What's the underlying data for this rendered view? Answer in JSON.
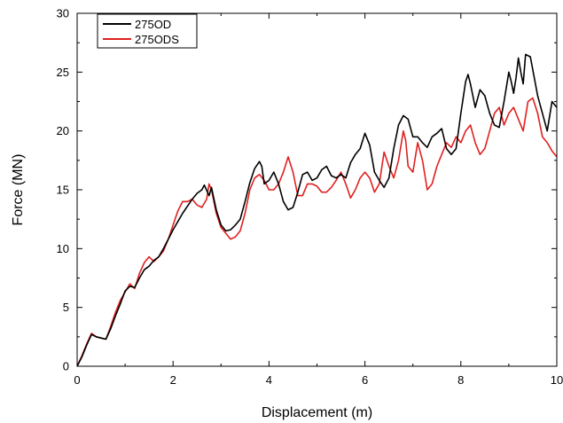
{
  "chart_data": {
    "type": "line",
    "xlabel": "Displacement (m)",
    "ylabel": "Force (MN)",
    "xlim": [
      0,
      10
    ],
    "ylim": [
      0,
      30
    ],
    "xticks": [
      "0",
      "2",
      "4",
      "6",
      "8",
      "10"
    ],
    "yticks": [
      "0",
      "5",
      "10",
      "15",
      "20",
      "25",
      "30"
    ],
    "grid": false,
    "legend_position": "top-left",
    "series": [
      {
        "name": "275OD",
        "color": "#000000",
        "points": [
          [
            0,
            0
          ],
          [
            0.1,
            0.8
          ],
          [
            0.2,
            1.8
          ],
          [
            0.3,
            2.7
          ],
          [
            0.4,
            2.5
          ],
          [
            0.5,
            2.4
          ],
          [
            0.6,
            2.3
          ],
          [
            0.7,
            3.2
          ],
          [
            0.8,
            4.3
          ],
          [
            0.9,
            5.3
          ],
          [
            1.0,
            6.4
          ],
          [
            1.1,
            6.8
          ],
          [
            1.2,
            6.7
          ],
          [
            1.3,
            7.5
          ],
          [
            1.4,
            8.2
          ],
          [
            1.5,
            8.5
          ],
          [
            1.6,
            9.0
          ],
          [
            1.7,
            9.3
          ],
          [
            1.8,
            10.0
          ],
          [
            1.9,
            10.8
          ],
          [
            2.0,
            11.6
          ],
          [
            2.1,
            12.3
          ],
          [
            2.2,
            13.0
          ],
          [
            2.3,
            13.6
          ],
          [
            2.4,
            14.2
          ],
          [
            2.5,
            14.7
          ],
          [
            2.6,
            15.0
          ],
          [
            2.65,
            15.4
          ],
          [
            2.75,
            14.5
          ],
          [
            2.8,
            15.2
          ],
          [
            2.9,
            13.3
          ],
          [
            3.0,
            12.0
          ],
          [
            3.1,
            11.5
          ],
          [
            3.2,
            11.6
          ],
          [
            3.3,
            12.0
          ],
          [
            3.4,
            12.5
          ],
          [
            3.5,
            14.0
          ],
          [
            3.6,
            15.6
          ],
          [
            3.7,
            16.8
          ],
          [
            3.8,
            17.4
          ],
          [
            3.85,
            17.0
          ],
          [
            3.9,
            15.5
          ],
          [
            4.0,
            15.8
          ],
          [
            4.1,
            16.5
          ],
          [
            4.2,
            15.5
          ],
          [
            4.3,
            14.0
          ],
          [
            4.4,
            13.3
          ],
          [
            4.5,
            13.5
          ],
          [
            4.6,
            14.8
          ],
          [
            4.7,
            16.3
          ],
          [
            4.8,
            16.5
          ],
          [
            4.9,
            15.8
          ],
          [
            5.0,
            16.0
          ],
          [
            5.1,
            16.7
          ],
          [
            5.2,
            17.0
          ],
          [
            5.3,
            16.2
          ],
          [
            5.4,
            16.0
          ],
          [
            5.5,
            16.3
          ],
          [
            5.6,
            16.0
          ],
          [
            5.7,
            17.3
          ],
          [
            5.8,
            18.0
          ],
          [
            5.9,
            18.5
          ],
          [
            6.0,
            19.8
          ],
          [
            6.1,
            18.8
          ],
          [
            6.2,
            16.5
          ],
          [
            6.3,
            15.8
          ],
          [
            6.4,
            15.2
          ],
          [
            6.5,
            16.0
          ],
          [
            6.6,
            18.5
          ],
          [
            6.7,
            20.5
          ],
          [
            6.8,
            21.3
          ],
          [
            6.9,
            21.0
          ],
          [
            7.0,
            19.5
          ],
          [
            7.1,
            19.5
          ],
          [
            7.2,
            19.0
          ],
          [
            7.3,
            18.6
          ],
          [
            7.4,
            19.5
          ],
          [
            7.5,
            19.8
          ],
          [
            7.6,
            20.2
          ],
          [
            7.7,
            18.5
          ],
          [
            7.8,
            18.0
          ],
          [
            7.9,
            18.5
          ],
          [
            8.0,
            21.5
          ],
          [
            8.1,
            24.2
          ],
          [
            8.15,
            24.8
          ],
          [
            8.2,
            24.0
          ],
          [
            8.3,
            22.0
          ],
          [
            8.4,
            23.5
          ],
          [
            8.5,
            23.0
          ],
          [
            8.6,
            21.5
          ],
          [
            8.7,
            20.5
          ],
          [
            8.8,
            20.3
          ],
          [
            8.9,
            22.5
          ],
          [
            9.0,
            25.0
          ],
          [
            9.05,
            24.2
          ],
          [
            9.1,
            23.2
          ],
          [
            9.15,
            24.5
          ],
          [
            9.2,
            26.2
          ],
          [
            9.25,
            25.0
          ],
          [
            9.3,
            24.0
          ],
          [
            9.35,
            26.5
          ],
          [
            9.45,
            26.3
          ],
          [
            9.6,
            23.0
          ],
          [
            9.7,
            21.5
          ],
          [
            9.8,
            20.0
          ],
          [
            9.9,
            22.5
          ],
          [
            10.0,
            22.0
          ]
        ]
      },
      {
        "name": "275ODS",
        "color": "#e0201f",
        "points": [
          [
            0,
            0
          ],
          [
            0.1,
            0.9
          ],
          [
            0.2,
            1.9
          ],
          [
            0.3,
            2.8
          ],
          [
            0.4,
            2.5
          ],
          [
            0.5,
            2.4
          ],
          [
            0.6,
            2.3
          ],
          [
            0.7,
            3.4
          ],
          [
            0.8,
            4.6
          ],
          [
            0.9,
            5.6
          ],
          [
            1.0,
            6.3
          ],
          [
            1.1,
            7.0
          ],
          [
            1.2,
            6.6
          ],
          [
            1.3,
            7.9
          ],
          [
            1.4,
            8.8
          ],
          [
            1.5,
            9.3
          ],
          [
            1.6,
            8.9
          ],
          [
            1.7,
            9.3
          ],
          [
            1.8,
            9.8
          ],
          [
            1.9,
            10.8
          ],
          [
            2.0,
            12.0
          ],
          [
            2.1,
            13.2
          ],
          [
            2.2,
            14.0
          ],
          [
            2.3,
            14.0
          ],
          [
            2.4,
            14.2
          ],
          [
            2.5,
            13.7
          ],
          [
            2.6,
            13.5
          ],
          [
            2.7,
            14.2
          ],
          [
            2.75,
            15.5
          ],
          [
            2.8,
            15.0
          ],
          [
            2.9,
            13.0
          ],
          [
            3.0,
            11.8
          ],
          [
            3.1,
            11.3
          ],
          [
            3.2,
            10.8
          ],
          [
            3.3,
            11.0
          ],
          [
            3.4,
            11.5
          ],
          [
            3.5,
            13.0
          ],
          [
            3.6,
            15.0
          ],
          [
            3.7,
            16.0
          ],
          [
            3.8,
            16.3
          ],
          [
            3.9,
            15.8
          ],
          [
            4.0,
            15.0
          ],
          [
            4.1,
            15.0
          ],
          [
            4.2,
            15.5
          ],
          [
            4.3,
            16.5
          ],
          [
            4.4,
            17.8
          ],
          [
            4.5,
            16.5
          ],
          [
            4.6,
            14.5
          ],
          [
            4.7,
            14.5
          ],
          [
            4.8,
            15.5
          ],
          [
            4.9,
            15.5
          ],
          [
            5.0,
            15.3
          ],
          [
            5.1,
            14.8
          ],
          [
            5.2,
            14.8
          ],
          [
            5.3,
            15.2
          ],
          [
            5.4,
            15.8
          ],
          [
            5.5,
            16.5
          ],
          [
            5.6,
            15.5
          ],
          [
            5.7,
            14.3
          ],
          [
            5.8,
            15.0
          ],
          [
            5.9,
            16.0
          ],
          [
            6.0,
            16.5
          ],
          [
            6.1,
            16.0
          ],
          [
            6.2,
            14.8
          ],
          [
            6.3,
            15.5
          ],
          [
            6.4,
            18.2
          ],
          [
            6.5,
            17.0
          ],
          [
            6.6,
            16.0
          ],
          [
            6.7,
            17.5
          ],
          [
            6.8,
            20.0
          ],
          [
            6.85,
            19.2
          ],
          [
            6.9,
            17.0
          ],
          [
            7.0,
            16.5
          ],
          [
            7.1,
            19.0
          ],
          [
            7.2,
            17.5
          ],
          [
            7.3,
            15.0
          ],
          [
            7.4,
            15.5
          ],
          [
            7.5,
            17.0
          ],
          [
            7.6,
            18.0
          ],
          [
            7.7,
            19.0
          ],
          [
            7.8,
            18.6
          ],
          [
            7.9,
            19.5
          ],
          [
            8.0,
            19.0
          ],
          [
            8.1,
            20.0
          ],
          [
            8.2,
            20.5
          ],
          [
            8.3,
            19.0
          ],
          [
            8.4,
            18.0
          ],
          [
            8.5,
            18.5
          ],
          [
            8.6,
            20.0
          ],
          [
            8.7,
            21.5
          ],
          [
            8.8,
            22.0
          ],
          [
            8.9,
            20.5
          ],
          [
            9.0,
            21.5
          ],
          [
            9.1,
            22.0
          ],
          [
            9.2,
            21.0
          ],
          [
            9.3,
            20.0
          ],
          [
            9.4,
            22.5
          ],
          [
            9.5,
            22.8
          ],
          [
            9.6,
            21.5
          ],
          [
            9.7,
            19.5
          ],
          [
            9.8,
            19.0
          ],
          [
            9.9,
            18.3
          ],
          [
            10.0,
            17.8
          ]
        ]
      }
    ]
  }
}
